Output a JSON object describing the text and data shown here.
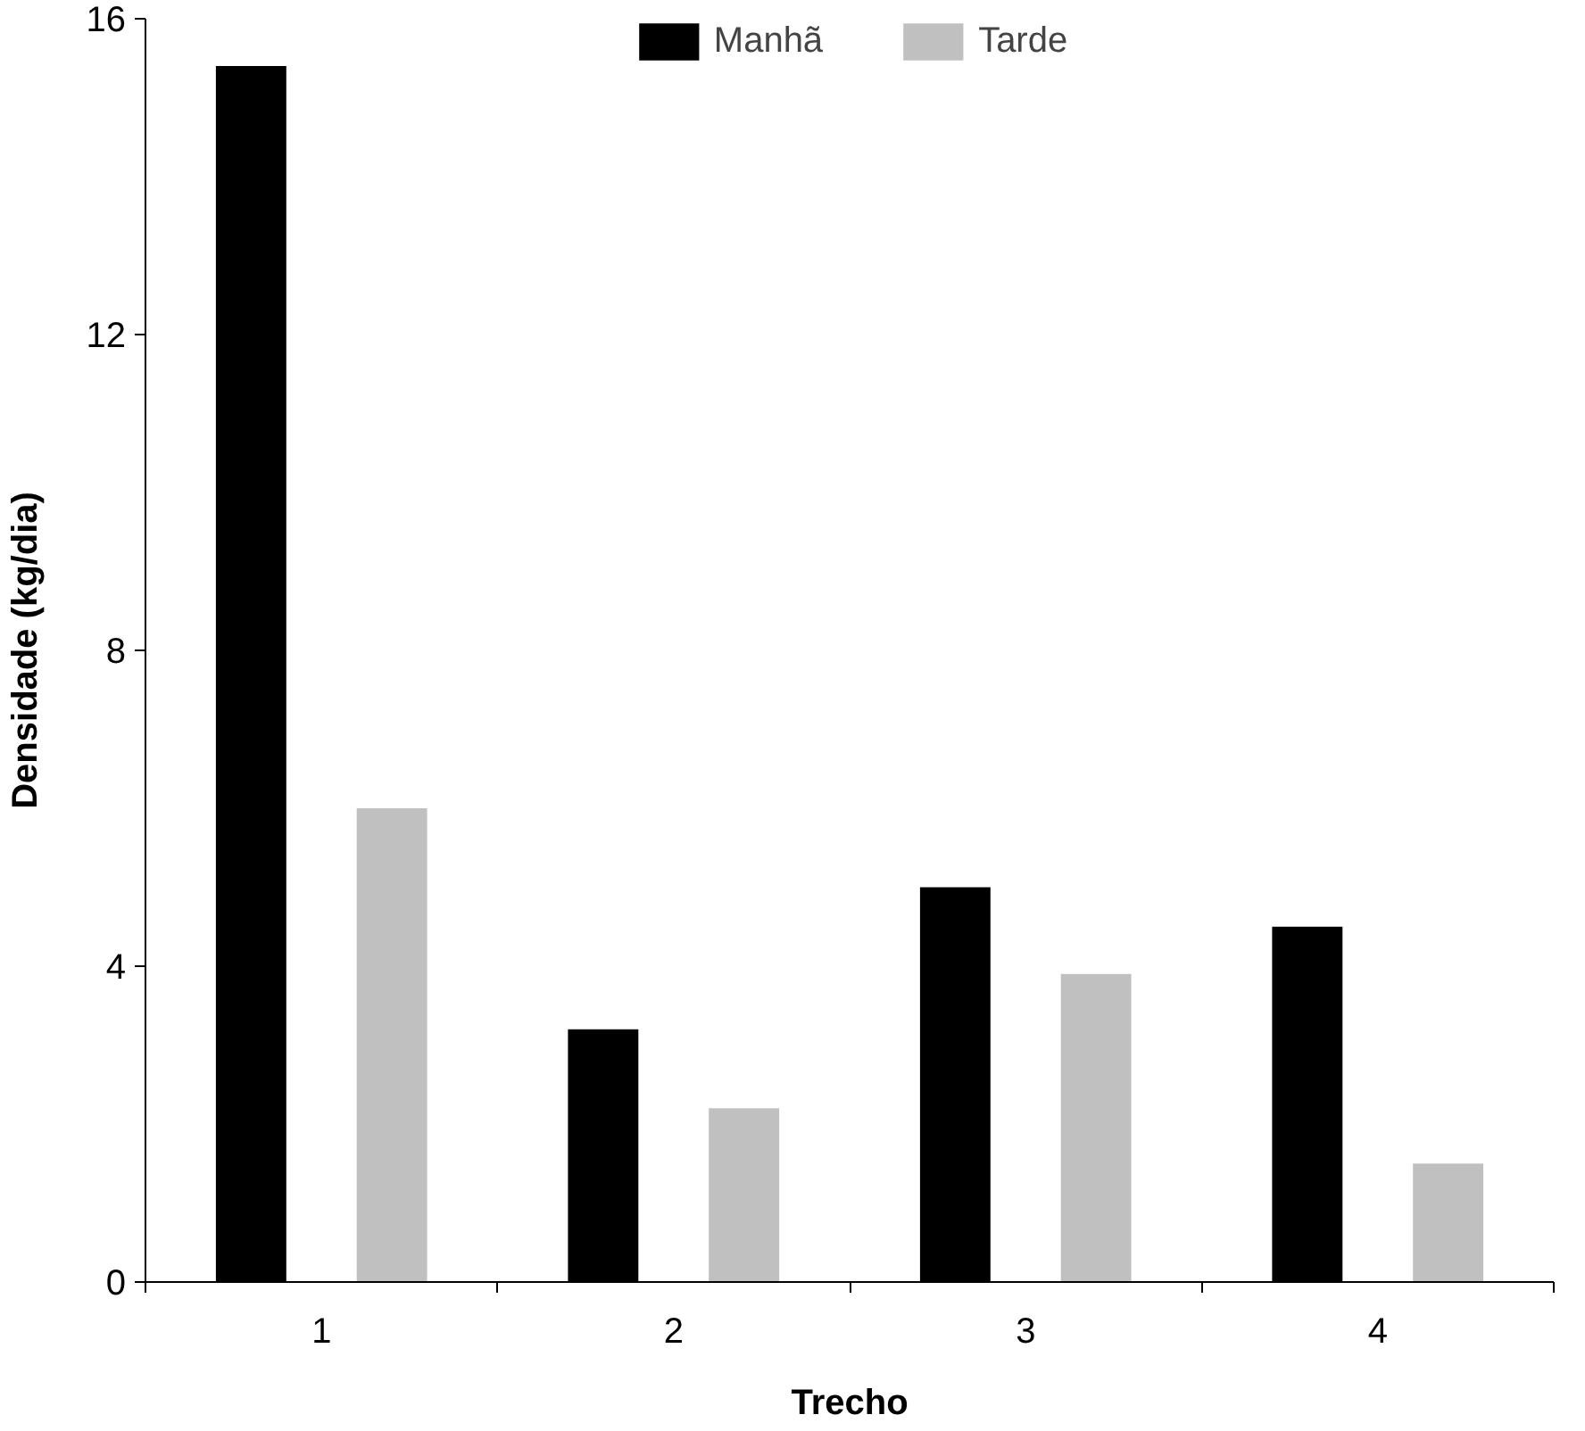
{
  "chart_data": {
    "type": "bar",
    "xlabel": "Trecho",
    "ylabel": "Densidade (kg/dia)",
    "categories": [
      "1",
      "2",
      "3",
      "4"
    ],
    "series": [
      {
        "name": "Manhã",
        "color": "#000000",
        "values": [
          15.4,
          3.2,
          5.0,
          4.5
        ]
      },
      {
        "name": "Tarde",
        "color": "#c0c0c0",
        "values": [
          6.0,
          2.2,
          3.9,
          1.5
        ]
      }
    ],
    "ylim": [
      0,
      16
    ],
    "yticks": [
      0,
      4,
      8,
      12,
      16
    ],
    "grid": false,
    "legend": "top"
  }
}
